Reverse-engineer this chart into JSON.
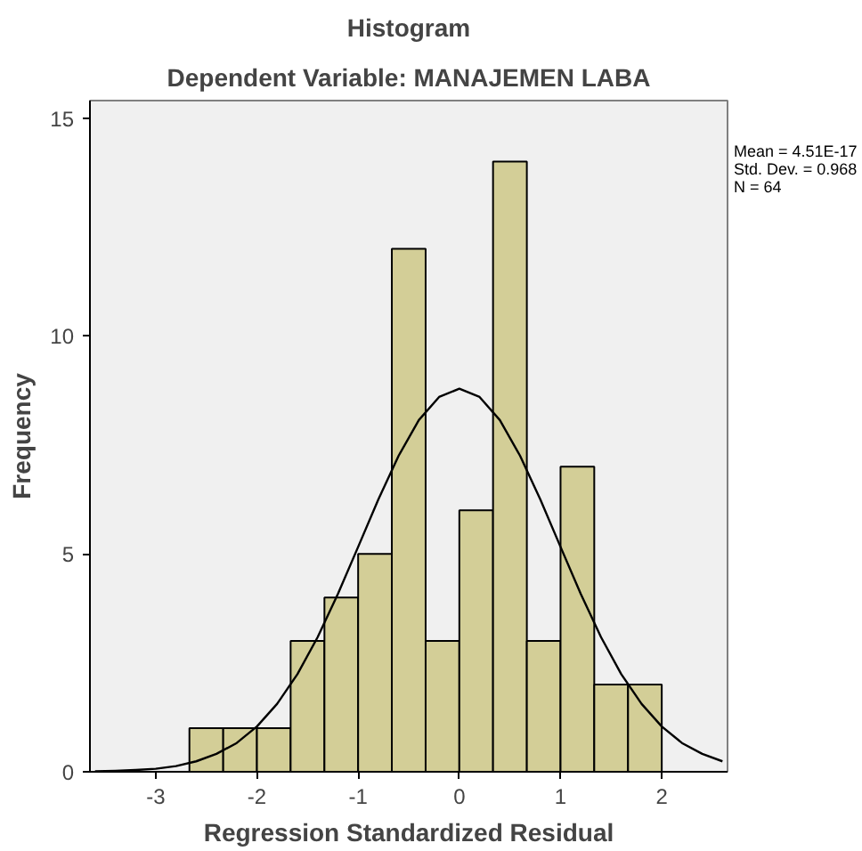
{
  "chart_data": {
    "type": "histogram",
    "title": "Histogram",
    "subtitle": "Dependent Variable: MANAJEMEN LABA",
    "xlabel": "Regression Standardized Residual",
    "ylabel": "Frequency",
    "annotations": [
      "Mean = 4.51E-17",
      "Std. Dev. = 0.968",
      "N = 64"
    ],
    "bins": [
      -2.667,
      -2.333,
      -2.0,
      -1.667,
      -1.333,
      -1.0,
      -0.667,
      -0.333,
      0.0,
      0.333,
      0.667,
      1.0,
      1.333,
      1.667,
      2.0
    ],
    "values": [
      1,
      1,
      1,
      3,
      4,
      5,
      12,
      3,
      6,
      14,
      3,
      7,
      2,
      2
    ],
    "color": "#d3ce97",
    "series": [
      {
        "type": "line",
        "color": "#000000",
        "x": [
          -3.6,
          -3.4,
          -3.2,
          -3.0,
          -2.8,
          -2.6,
          -2.4,
          -2.2,
          -2.0,
          -1.8,
          -1.6,
          -1.4,
          -1.2,
          -1.0,
          -0.8,
          -0.6,
          -0.4,
          -0.2,
          0.0,
          0.2,
          0.4,
          0.6,
          0.8,
          1.0,
          1.2,
          1.4,
          1.6,
          1.8,
          2.0,
          2.2,
          2.4,
          2.6
        ],
        "values": [
          0.01,
          0.02,
          0.04,
          0.07,
          0.13,
          0.24,
          0.41,
          0.66,
          1.04,
          1.56,
          2.24,
          3.09,
          4.08,
          5.16,
          6.25,
          7.25,
          8.07,
          8.6,
          8.79,
          8.6,
          8.07,
          7.25,
          6.25,
          5.16,
          4.08,
          3.09,
          2.24,
          1.56,
          1.04,
          0.66,
          0.41,
          0.24
        ]
      }
    ],
    "xlim": [
      -3.65,
      2.65
    ],
    "ylim": [
      0,
      15.4
    ],
    "xticks": [
      -3,
      -2,
      -1,
      0,
      1,
      2
    ],
    "yticks": [
      0,
      5,
      10,
      15
    ],
    "grid": false
  }
}
